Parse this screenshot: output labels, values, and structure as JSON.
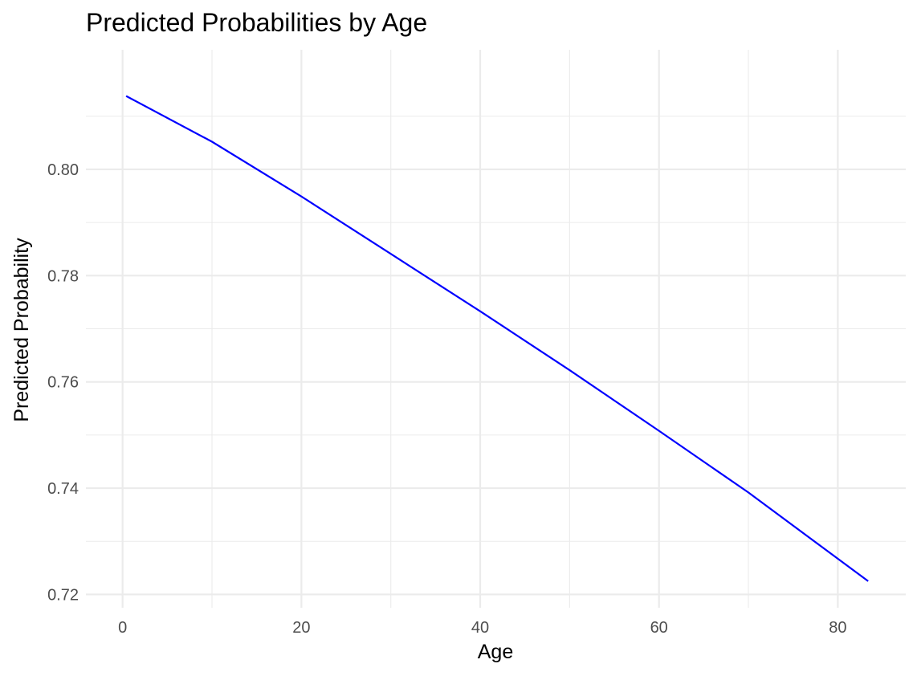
{
  "chart_data": {
    "type": "line",
    "title": "Predicted Probabilities by Age",
    "xlabel": "Age",
    "ylabel": "Predicted Probability",
    "xlim": [
      -4.1,
      87.6
    ],
    "ylim": [
      0.7175,
      0.8225
    ],
    "x_ticks": [
      0,
      20,
      40,
      60,
      80
    ],
    "x_tick_labels": [
      "0",
      "20",
      "40",
      "60",
      "80"
    ],
    "x_minor_ticks": [
      10,
      30,
      50,
      70
    ],
    "y_ticks": [
      0.72,
      0.74,
      0.76,
      0.78,
      0.8
    ],
    "y_tick_labels": [
      "0.72",
      "0.74",
      "0.76",
      "0.78",
      "0.80"
    ],
    "y_minor_ticks": [
      0.73,
      0.75,
      0.77,
      0.79,
      0.81
    ],
    "grid": true,
    "legend": "none",
    "series": [
      {
        "color": "#0000ff",
        "x": [
          0.4,
          10,
          20,
          30,
          40,
          50,
          60,
          70,
          83.4
        ],
        "y": [
          0.8138,
          0.8052,
          0.7949,
          0.7841,
          0.7733,
          0.7622,
          0.7508,
          0.7392,
          0.7225
        ]
      }
    ]
  }
}
